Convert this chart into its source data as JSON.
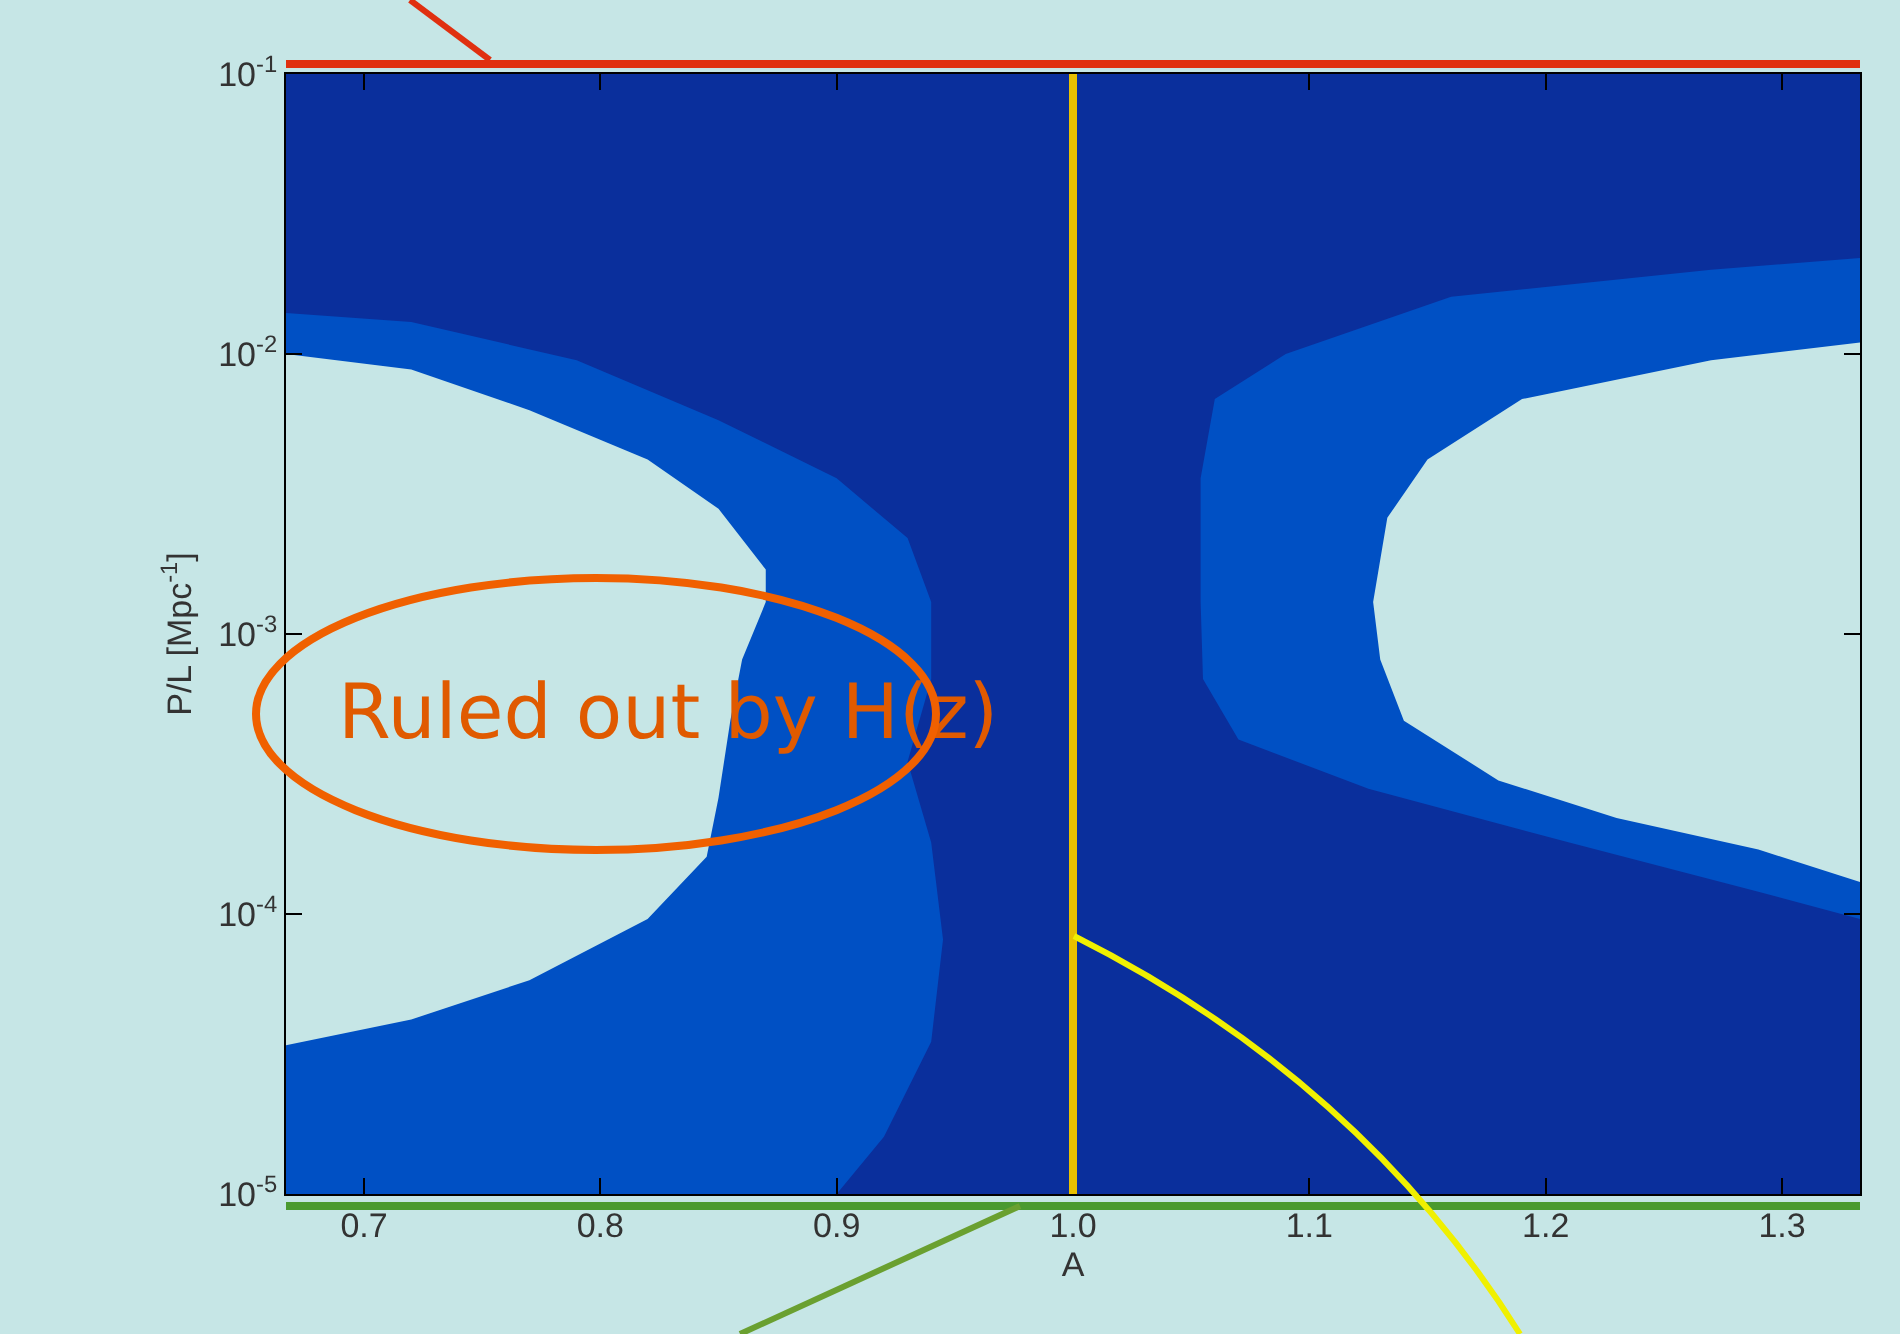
{
  "chart_data": {
    "type": "area",
    "xlabel": "A",
    "ylabel": "P/L [Mpc$^{-1}$]",
    "annotations": [
      "Ruled out by H(z)"
    ],
    "log": "y",
    "xlim": [
      0.667,
      1.333
    ],
    "ylim": [
      1e-05,
      0.1
    ],
    "xticks": [
      0.7,
      0.8,
      0.9,
      {
        "value": 1,
        "label": "1.0"
      },
      1.1,
      1.2,
      1.3
    ],
    "yticks": [
      {
        "value": 0.1,
        "label": "10$^{-1}$"
      },
      {
        "value": 0.01,
        "label": "10$^{-2}$"
      },
      {
        "value": 0.001,
        "label": "10$^{-3}$"
      },
      {
        "value": 0.0001,
        "label": "10$^{-4}$"
      },
      {
        "value": 1e-05,
        "label": "10$^{-5}$"
      }
    ],
    "series": [
      {
        "color": "#0050c4",
        "x": [
          0.667,
          0.72,
          0.79,
          0.85,
          0.9,
          0.93,
          0.94,
          0.94,
          0.93,
          0.94,
          0.945,
          0.94,
          0.92,
          0.9,
          0.667
        ],
        "values": [
          0.014,
          0.013,
          0.0095,
          0.0058,
          0.0036,
          0.0022,
          0.0013,
          0.00069,
          0.00035,
          0.00018,
          8.1e-05,
          3.5e-05,
          1.6e-05,
          1e-05,
          1e-05
        ]
      },
      {
        "color": "#c6e6e6",
        "x": [
          0.667,
          0.72,
          0.77,
          0.82,
          0.85,
          0.87,
          0.87,
          0.86,
          0.855,
          0.85,
          0.845,
          0.82,
          0.77,
          0.72,
          0.667
        ],
        "values": [
          0.01,
          0.0088,
          0.0063,
          0.0042,
          0.0028,
          0.0017,
          0.0013,
          0.00081,
          0.00049,
          0.00026,
          0.00016,
          9.6e-05,
          5.8e-05,
          4.2e-05,
          3.4e-05
        ]
      },
      {
        "color": "#0050c4",
        "x": [
          1.333,
          1.27,
          1.16,
          1.09,
          1.06,
          1.054,
          1.054,
          1.055,
          1.07,
          1.125,
          1.21,
          1.29,
          1.333
        ],
        "values": [
          0.022,
          0.02,
          0.016,
          0.01,
          0.0069,
          0.0036,
          0.0013,
          0.00069,
          0.00042,
          0.00028,
          0.00018,
          0.00012,
          9.6e-05
        ]
      },
      {
        "color": "#c6e6e6",
        "x": [
          1.333,
          1.27,
          1.19,
          1.15,
          1.133,
          1.127,
          1.13,
          1.14,
          1.18,
          1.23,
          1.29,
          1.333
        ],
        "values": [
          0.011,
          0.0095,
          0.0069,
          0.0042,
          0.0026,
          0.0013,
          0.00081,
          0.00049,
          0.0003,
          0.00022,
          0.00017,
          0.00013
        ]
      }
    ],
    "ref_lines": [
      {
        "axis": "x",
        "value": 1,
        "color": "#e8c000"
      }
    ]
  }
}
